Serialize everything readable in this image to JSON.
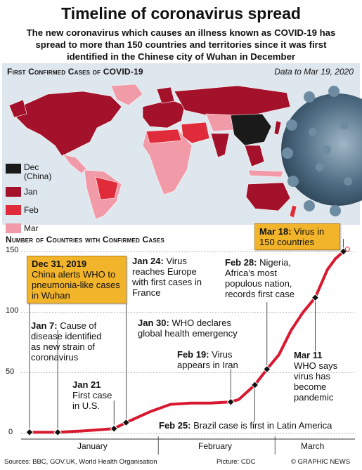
{
  "title": "Timeline of coronavirus spread",
  "subtitle": "The new coronavirus which causes an illness known as COVID-19 has spread to more than 150 countries and territories since it was first identified in the Chinese city of Wuhan in December",
  "map_section": {
    "heading": "First Confirmed Cases of COVID-19",
    "date_note": "Data to Mar 19, 2020",
    "legend": [
      {
        "label": "Dec",
        "sublabel": "(China)",
        "color": "#1a1a1a"
      },
      {
        "label": "Jan",
        "color": "#a3122a"
      },
      {
        "label": "Feb",
        "color": "#e02b3a"
      },
      {
        "label": "Mar",
        "color": "#f19aa8"
      }
    ]
  },
  "chart_section": {
    "heading": "Number of Countries with Confirmed Cases"
  },
  "chart_data": {
    "type": "line",
    "ylim": [
      0,
      150
    ],
    "yticks": [
      0,
      50,
      100,
      150
    ],
    "months": [
      "January",
      "February",
      "March"
    ],
    "x": [
      "Dec 31",
      "Jan 7",
      "Jan 13",
      "Jan 21",
      "Jan 24",
      "Jan 28",
      "Jan 30",
      "Feb 4",
      "Feb 9",
      "Feb 14",
      "Feb 19",
      "Feb 21",
      "Feb 25",
      "Feb 28",
      "Mar 2",
      "Mar 5",
      "Mar 8",
      "Mar 11",
      "Mar 14",
      "Mar 16",
      "Mar 18",
      "Mar 19"
    ],
    "values": [
      1,
      1,
      2,
      4,
      9,
      15,
      18,
      24,
      25,
      25,
      26,
      28,
      40,
      53,
      65,
      85,
      100,
      112,
      135,
      144,
      150,
      152
    ],
    "series_color": "#d8182e",
    "markers": [
      "Dec 31",
      "Jan 7",
      "Jan 21",
      "Jan 24",
      "Feb 19",
      "Feb 25",
      "Feb 28",
      "Mar 11",
      "Mar 18"
    ]
  },
  "callouts": {
    "dec31": {
      "date": "Dec 31, 2019",
      "text": "China alerts WHO to pneumonia-like cases in Wuhan"
    },
    "jan7": {
      "date": "Jan 7:",
      "text": "Cause of disease identified as new strain of coronavirus"
    },
    "jan21": {
      "date": "Jan 21",
      "text": "First case in U.S."
    },
    "jan24": {
      "date": "Jan 24:",
      "text": "Virus reaches Europe with first cases in France"
    },
    "jan30": {
      "date": "Jan 30:",
      "text": "WHO declares global health emergency"
    },
    "feb19": {
      "date": "Feb 19:",
      "text": "Virus appears in Iran"
    },
    "feb28": {
      "date": "Feb 28:",
      "text": "Nigeria, Africa's most populous nation, records first case"
    },
    "feb25": {
      "date": "Feb 25:",
      "text": "Brazil case is first in Latin America"
    },
    "mar11": {
      "date": "Mar 11",
      "text": "WHO says virus has become pandemic"
    },
    "mar18": {
      "date": "Mar 18:",
      "text": "Virus in 150 countries"
    }
  },
  "footer": {
    "sources": "Sources: BBC, GOV.UK, World Health Organisation",
    "picture": "Picture: CDC",
    "credit": "© GRAPHIC NEWS"
  }
}
